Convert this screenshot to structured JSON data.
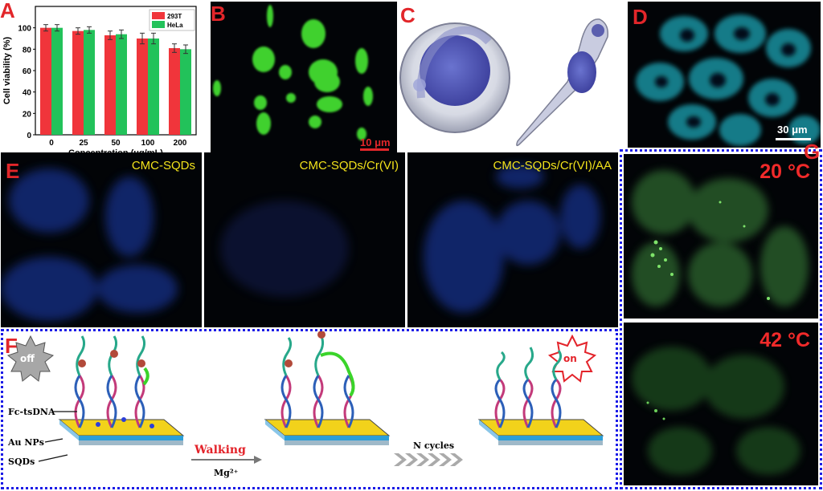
{
  "panels": {
    "a": {
      "label": "A"
    },
    "b": {
      "label": "B",
      "scale": "10 μm"
    },
    "c": {
      "label": "C"
    },
    "d": {
      "label": "D",
      "scale": "30 μm"
    },
    "e": {
      "label": "E",
      "titles": [
        "CMC-SQDs",
        "CMC-SQDs/Cr(VI)",
        "CMC-SQDs/Cr(VI)/AA"
      ]
    },
    "f": {
      "label": "F",
      "off": "off",
      "on": "on",
      "layers": [
        "Fc-tsDNA",
        "Au NPs",
        "SQDs"
      ],
      "walking": "Walking",
      "mg": "Mg²⁺",
      "ncycles": "N cycles"
    },
    "g": {
      "label": "G",
      "temps": [
        "20 °C",
        "42 °C"
      ]
    }
  },
  "colors": {
    "panel_label": "#e2262a",
    "bar_293t": "#f0353b",
    "bar_hela": "#22c25a",
    "dotted_border": "#1b1be6",
    "fluo_text": "#f2e21b"
  },
  "chart_data": {
    "type": "bar",
    "categories": [
      "0",
      "25",
      "50",
      "100",
      "200"
    ],
    "series": [
      {
        "name": "293T",
        "values": [
          100,
          97,
          93,
          90,
          81
        ],
        "errors": [
          3,
          3,
          4,
          5,
          4
        ]
      },
      {
        "name": "HeLa",
        "values": [
          100,
          98,
          94,
          90,
          80
        ],
        "errors": [
          3,
          3,
          4,
          5,
          4
        ]
      }
    ],
    "xlabel": "Concentration (μg/mL)",
    "ylabel": "Cell viability (%)",
    "ylim": [
      0,
      120
    ],
    "yticks": [
      "0",
      "20",
      "40",
      "60",
      "80",
      "100"
    ],
    "legend_position": "top-right"
  }
}
